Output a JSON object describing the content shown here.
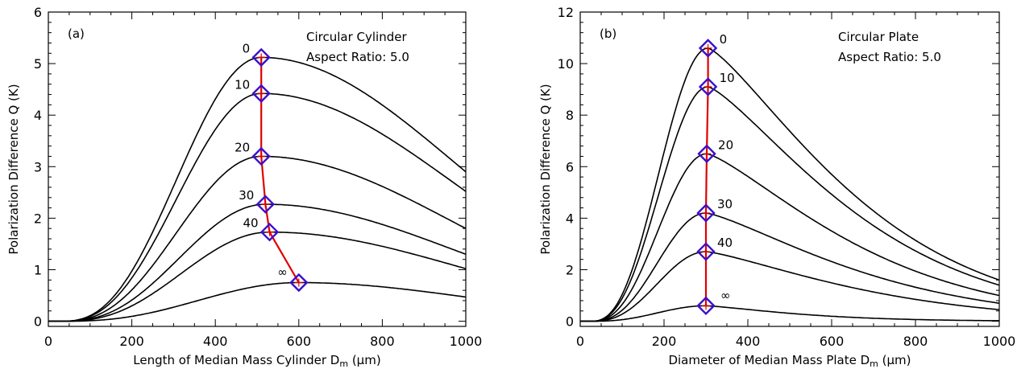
{
  "chart_data": [
    {
      "type": "line",
      "panel_label": "(a)",
      "annotation_lines": [
        "Circular Cylinder",
        "Aspect Ratio: 5.0"
      ],
      "xlabel": "Length of Median Mass Cylinder D",
      "xlabel_sub": "m",
      "xlabel_unit": " (μm)",
      "ylabel": "Polarization Difference Q (K)",
      "xlim": [
        0,
        1000
      ],
      "ylim": [
        -0.1,
        6
      ],
      "xticks": [
        0,
        200,
        400,
        600,
        800,
        1000
      ],
      "yticks": [
        0,
        1,
        2,
        3,
        4,
        5,
        6
      ],
      "onset": 30,
      "decay_width": 2.0,
      "series": [
        {
          "label": "0",
          "peak_x": 510,
          "peak_y": 5.12,
          "end_y": 2.9
        },
        {
          "label": "10",
          "peak_x": 510,
          "peak_y": 4.42,
          "end_y": 2.52
        },
        {
          "label": "20",
          "peak_x": 510,
          "peak_y": 3.2,
          "end_y": 1.8
        },
        {
          "label": "30",
          "peak_x": 520,
          "peak_y": 2.27,
          "end_y": 1.3
        },
        {
          "label": "40",
          "peak_x": 530,
          "peak_y": 1.73,
          "end_y": 1.02
        },
        {
          "label": "∞",
          "peak_x": 600,
          "peak_y": 0.75,
          "end_y": 0.47
        }
      ]
    },
    {
      "type": "line",
      "panel_label": "(b)",
      "annotation_lines": [
        "Circular Plate",
        "Aspect Ratio: 5.0"
      ],
      "xlabel": "Diameter of Median Mass Plate D",
      "xlabel_sub": "m",
      "xlabel_unit": " (μm)",
      "ylabel": "Polarization Difference Q (K)",
      "xlim": [
        0,
        1000
      ],
      "ylim": [
        -0.2,
        12
      ],
      "xticks": [
        0,
        200,
        400,
        600,
        800,
        1000
      ],
      "yticks": [
        0,
        2,
        4,
        6,
        8,
        10,
        12
      ],
      "onset": 25,
      "decay_width": 1.3,
      "series": [
        {
          "label": "0",
          "peak_x": 305,
          "peak_y": 10.6,
          "end_y": 1.6
        },
        {
          "label": "10",
          "peak_x": 305,
          "peak_y": 9.1,
          "end_y": 1.4
        },
        {
          "label": "20",
          "peak_x": 302,
          "peak_y": 6.5,
          "end_y": 1.0
        },
        {
          "label": "30",
          "peak_x": 300,
          "peak_y": 4.2,
          "end_y": 0.7
        },
        {
          "label": "40",
          "peak_x": 300,
          "peak_y": 2.7,
          "end_y": 0.45
        },
        {
          "label": "∞",
          "peak_x": 300,
          "peak_y": 0.6,
          "end_y": 0.02
        }
      ]
    }
  ]
}
